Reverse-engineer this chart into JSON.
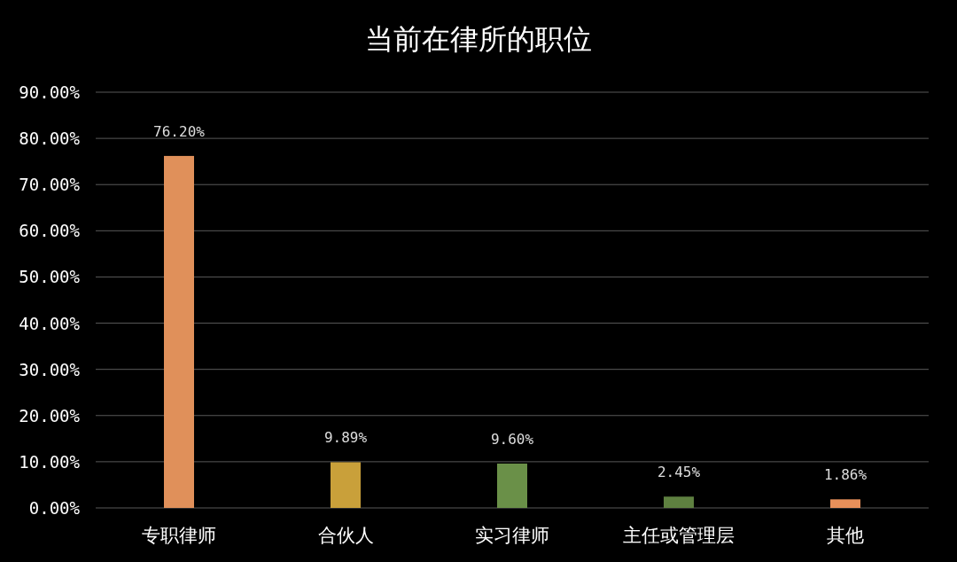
{
  "chart_data": {
    "type": "bar",
    "title": "当前在律所的职位",
    "categories": [
      "专职律师",
      "合伙人",
      "实习律师",
      "主任或管理层",
      "其他"
    ],
    "values": [
      76.2,
      9.89,
      9.6,
      2.45,
      1.86
    ],
    "colors": [
      "#e0905a",
      "#c9a03a",
      "#6a9048",
      "#5e8040",
      "#e8905a"
    ],
    "value_labels": [
      "76.20%",
      "9.89%",
      "9.60%",
      "2.45%",
      "1.86%"
    ],
    "ylim": [
      0,
      90
    ],
    "yticks": [
      {
        "value": 0,
        "label": "0.00%"
      },
      {
        "value": 10,
        "label": "10.00%"
      },
      {
        "value": 20,
        "label": "20.00%"
      },
      {
        "value": 30,
        "label": "30.00%"
      },
      {
        "value": 40,
        "label": "40.00%"
      },
      {
        "value": 50,
        "label": "50.00%"
      },
      {
        "value": 60,
        "label": "60.00%"
      },
      {
        "value": 70,
        "label": "70.00%"
      },
      {
        "value": 80,
        "label": "80.00%"
      },
      {
        "value": 90,
        "label": "90.00%"
      }
    ],
    "grid": "y"
  }
}
